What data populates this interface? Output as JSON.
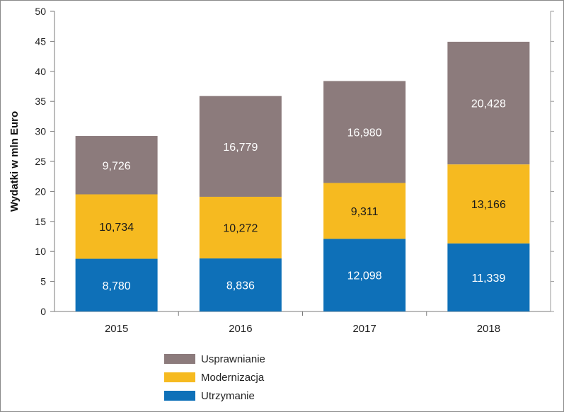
{
  "chart_data": {
    "type": "bar",
    "stacked": true,
    "title": "",
    "xlabel": "",
    "ylabel": "Wydatki w mln Euro",
    "ylim": [
      0,
      50
    ],
    "yticks": [
      0,
      5,
      10,
      15,
      20,
      25,
      30,
      35,
      40,
      45,
      50
    ],
    "categories": [
      "2015",
      "2016",
      "2017",
      "2018"
    ],
    "series": [
      {
        "name": "Utrzymanie",
        "color": "#0e70b8",
        "label_color": "#ffffff",
        "values": [
          8.78,
          8.836,
          12.098,
          11.339
        ],
        "labels": [
          "8,780",
          "8,836",
          "12,098",
          "11,339"
        ]
      },
      {
        "name": "Modernizacja",
        "color": "#f6ba20",
        "label_color": "#1a1a1a",
        "values": [
          10.734,
          10.272,
          9.311,
          13.166
        ],
        "labels": [
          "10,734",
          "10,272",
          "9,311",
          "13,166"
        ]
      },
      {
        "name": "Usprawnianie",
        "color": "#8c7b7c",
        "label_color": "#ffffff",
        "values": [
          9.726,
          16.779,
          16.98,
          20.428
        ],
        "labels": [
          "9,726",
          "16,779",
          "16,980",
          "20,428"
        ]
      }
    ],
    "legend_order": [
      "Usprawnianie",
      "Modernizacja",
      "Utrzymanie"
    ],
    "legend_position": "bottom-center",
    "grid": false
  }
}
